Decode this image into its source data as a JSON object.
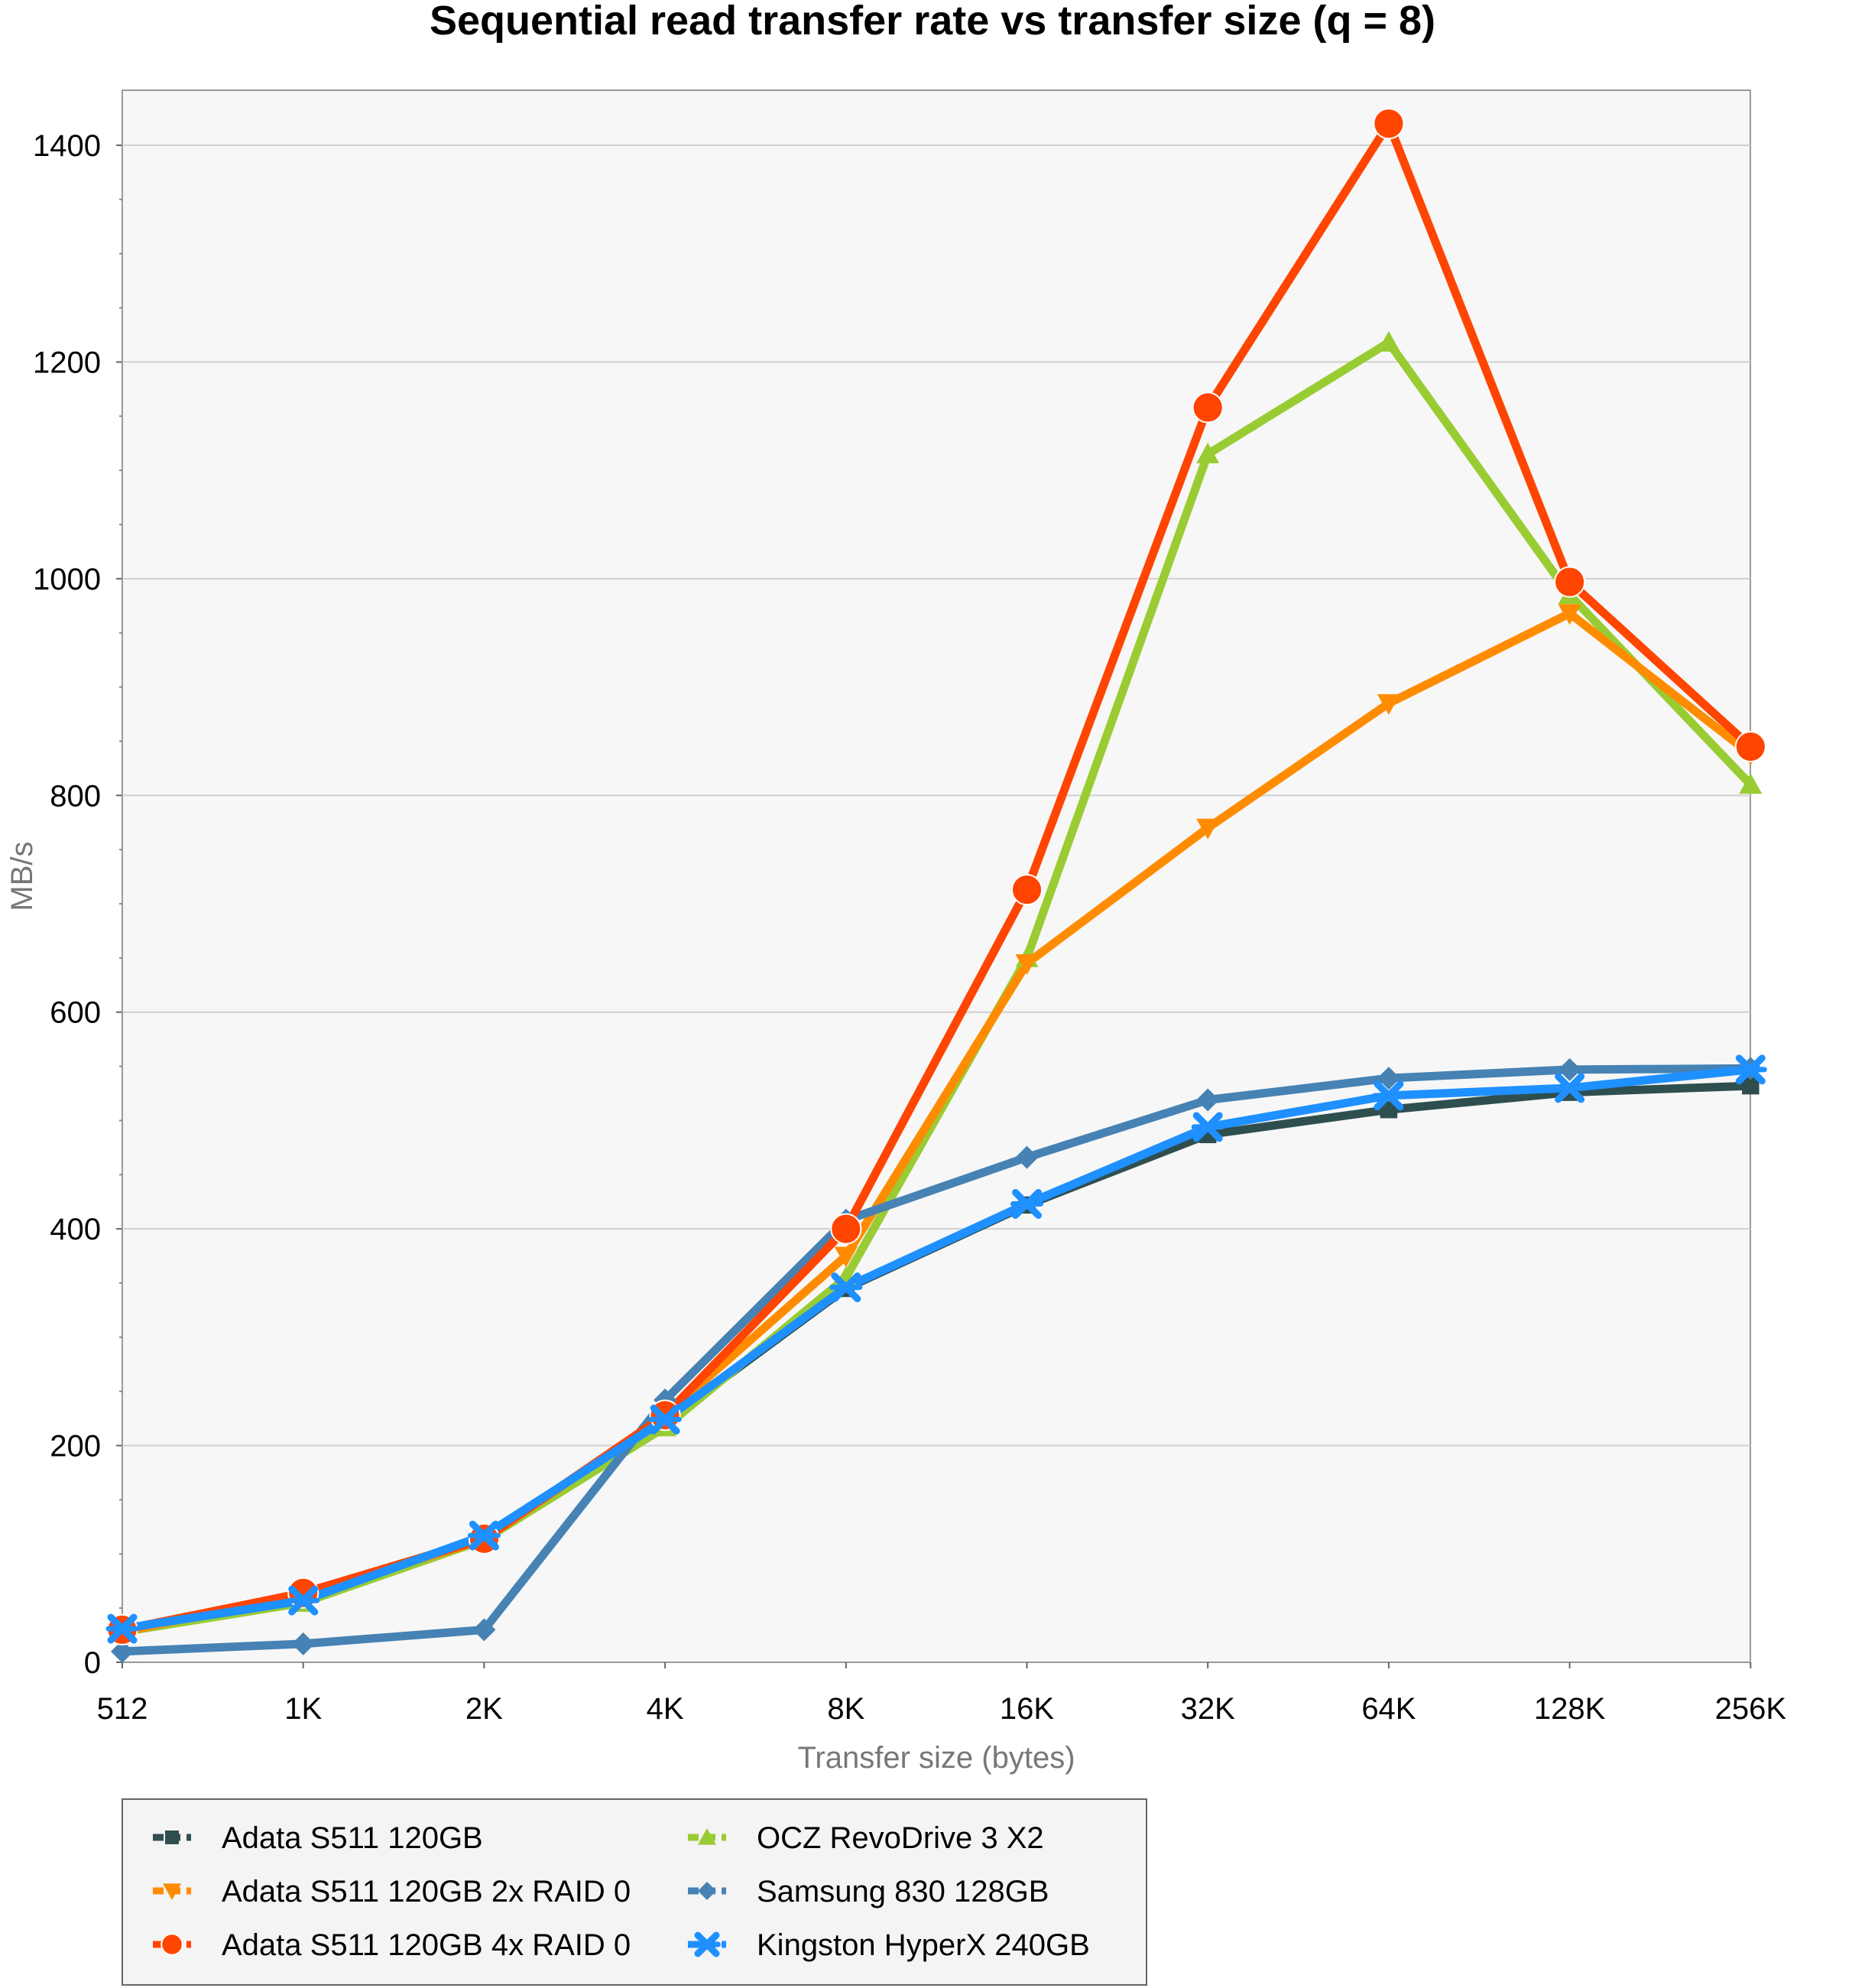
{
  "chart_data": {
    "type": "line",
    "title": "Sequential read transfer rate vs transfer size (q = 8)",
    "xlabel": "Transfer size (bytes)",
    "ylabel": "MB/s",
    "categories": [
      "512",
      "1K",
      "2K",
      "4K",
      "8K",
      "16K",
      "32K",
      "64K",
      "128K",
      "256K"
    ],
    "ylim": [
      0,
      1450
    ],
    "yticks": [
      0,
      200,
      400,
      600,
      800,
      1000,
      1200,
      1400
    ],
    "grid": true,
    "legend_position": "bottom-left",
    "series": [
      {
        "name": "Adata S511 120GB",
        "color": "#2f4f4f",
        "marker": "square",
        "values": [
          28,
          58,
          115,
          222,
          345,
          422,
          487,
          510,
          526,
          532
        ]
      },
      {
        "name": "OCZ RevoDrive 3 X2",
        "color": "#99cc33",
        "marker": "triangle-up",
        "values": [
          28,
          55,
          113,
          217,
          355,
          650,
          1115,
          1218,
          985,
          810
        ]
      },
      {
        "name": "Adata S511 120GB 2x RAID 0",
        "color": "#ff8c00",
        "marker": "triangle-down",
        "values": [
          28,
          63,
          113,
          228,
          375,
          645,
          770,
          885,
          968,
          838
        ]
      },
      {
        "name": "Samsung 830 128GB",
        "color": "#4682b4",
        "marker": "diamond",
        "values": [
          10,
          17,
          30,
          242,
          408,
          466,
          519,
          539,
          547,
          548
        ]
      },
      {
        "name": "Adata S511 120GB 4x RAID 0",
        "color": "#ff4500",
        "marker": "circle",
        "values": [
          30,
          64,
          114,
          228,
          400,
          713,
          1158,
          1420,
          997,
          845
        ]
      },
      {
        "name": "Kingston HyperX 240GB",
        "color": "#1e90ff",
        "marker": "star",
        "values": [
          31,
          57,
          117,
          224,
          346,
          423,
          494,
          523,
          530,
          547
        ]
      }
    ],
    "legend_order": [
      "Adata S511 120GB",
      "Adata S511 120GB 2x RAID 0",
      "Adata S511 120GB 4x RAID 0",
      "OCZ RevoDrive 3 X2",
      "Samsung 830 128GB",
      "Kingston HyperX 240GB"
    ]
  }
}
